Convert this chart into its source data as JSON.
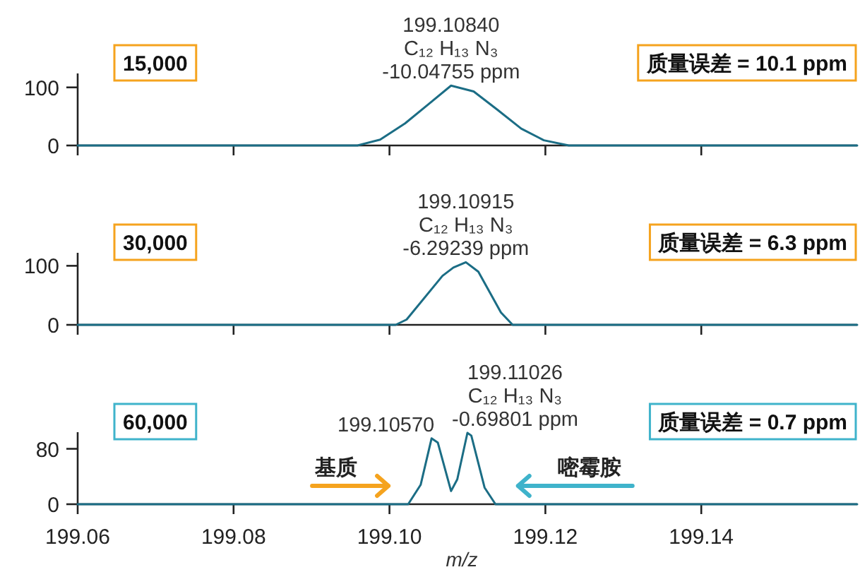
{
  "chart_data": [
    {
      "type": "line",
      "x": [
        199.06,
        199.0959,
        199.0988,
        199.102,
        199.105,
        199.1079,
        199.1108,
        199.1138,
        199.1169,
        199.1198,
        199.123,
        199.16
      ],
      "values": [
        0,
        0,
        10,
        38,
        71,
        103,
        93,
        62,
        29,
        9,
        0,
        0
      ],
      "color": "#1b6d85",
      "xlim": [
        199.06,
        199.16
      ],
      "xticks": [
        199.06,
        199.08,
        199.1,
        199.12,
        199.14
      ],
      "ylim": [
        0,
        124
      ],
      "yticks": [
        0,
        100
      ],
      "tick_labels": "y",
      "annotations": [
        "15,000",
        "质量误差 = 10.1 ppm",
        {
          "text": "199.10840\nC₁₂ H₁₃ N₃\n-10.04755 ppm",
          "x": 199.1079,
          "y": 103
        }
      ]
    },
    {
      "type": "line",
      "x": [
        199.06,
        199.1008,
        199.1022,
        199.1068,
        199.1082,
        199.1098,
        199.1114,
        199.1143,
        199.1158,
        199.16
      ],
      "values": [
        0,
        0,
        9,
        83,
        97,
        106,
        90,
        21,
        0,
        0
      ],
      "color": "#1b6d85",
      "xlim": [
        199.06,
        199.16
      ],
      "xticks": [
        199.06,
        199.08,
        199.1,
        199.12,
        199.14
      ],
      "ylim": [
        0,
        122
      ],
      "yticks": [
        0,
        100
      ],
      "tick_labels": "y",
      "annotations": [
        "30,000",
        "质量误差 = 6.3 ppm",
        {
          "text": "199.10915\nC₁₂ H₁₃ N₃\n-6.29239 ppm",
          "x": 199.1098,
          "y": 106
        }
      ]
    },
    {
      "type": "line",
      "x": [
        199.06,
        199.1024,
        199.104,
        199.1054,
        199.1062,
        199.1079,
        199.1087,
        199.11,
        199.1105,
        199.1122,
        199.1136,
        199.16
      ],
      "values": [
        0,
        0,
        28,
        95,
        89,
        19,
        36,
        103,
        99,
        24,
        0,
        0
      ],
      "color": "#1b6d85",
      "xlim": [
        199.06,
        199.16
      ],
      "xticks": [
        199.06,
        199.08,
        {
          "value": 199.1,
          "label": "199.10"
        },
        199.12,
        199.14
      ],
      "ylim": [
        0,
        104
      ],
      "yticks": [
        0,
        80
      ],
      "xlabel": "m/z",
      "annotations": [
        "60,000",
        "质量误差 = 0.7 ppm",
        {
          "text": "199.10570",
          "x": 199.1054,
          "y": 95
        },
        {
          "text": "199.11026\nC₁₂ H₁₃ N₃\n-0.69801 ppm",
          "x": 199.11,
          "y": 103
        },
        "基质",
        "嘧霉胺"
      ]
    }
  ]
}
